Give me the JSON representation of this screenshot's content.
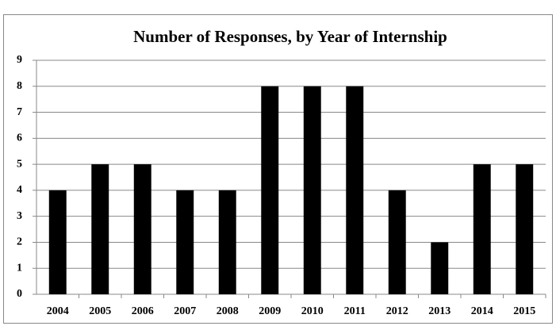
{
  "chart_data": {
    "type": "bar",
    "title": "Number of Responses, by Year of Internship",
    "categories": [
      "2004",
      "2005",
      "2006",
      "2007",
      "2008",
      "2009",
      "2010",
      "2011",
      "2012",
      "2013",
      "2014",
      "2015"
    ],
    "values": [
      4,
      5,
      5,
      4,
      4,
      8,
      8,
      8,
      4,
      2,
      5,
      5
    ],
    "color": "#000000",
    "ylim": [
      0,
      9
    ],
    "yticks": [
      0,
      1,
      2,
      3,
      4,
      5,
      6,
      7,
      8,
      9
    ],
    "grid": true
  }
}
